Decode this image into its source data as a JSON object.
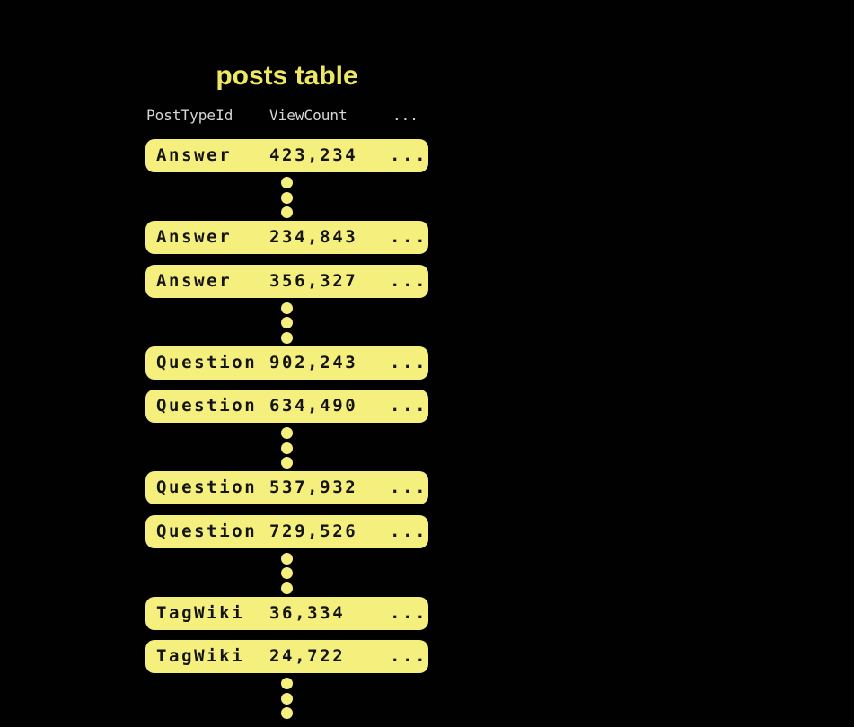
{
  "title": "posts table",
  "columns": [
    "PostTypeId",
    "ViewCount",
    "..."
  ],
  "rows": [
    {
      "type": "Answer",
      "value": "423,234",
      "more": "..."
    },
    {
      "type": "Answer",
      "value": "234,843",
      "more": "..."
    },
    {
      "type": "Answer",
      "value": "356,327",
      "more": "..."
    },
    {
      "type": "Question",
      "value": "902,243",
      "more": "..."
    },
    {
      "type": "Question",
      "value": "634,490",
      "more": "..."
    },
    {
      "type": "Question",
      "value": "537,932",
      "more": "..."
    },
    {
      "type": "Question",
      "value": "729,526",
      "more": "..."
    },
    {
      "type": "TagWiki",
      "value": "36,334",
      "more": "..."
    },
    {
      "type": "TagWiki",
      "value": "24,722",
      "more": "..."
    }
  ],
  "gap_indicator": {
    "icon": "vertical-ellipsis-dots",
    "dots_per_group": 3,
    "group_count": 5
  },
  "colors": {
    "background": "#010102",
    "row_fill": "#f5ef7d",
    "title_text": "#eee764",
    "header_text": "#d7d7d7",
    "row_text": "#141414"
  }
}
